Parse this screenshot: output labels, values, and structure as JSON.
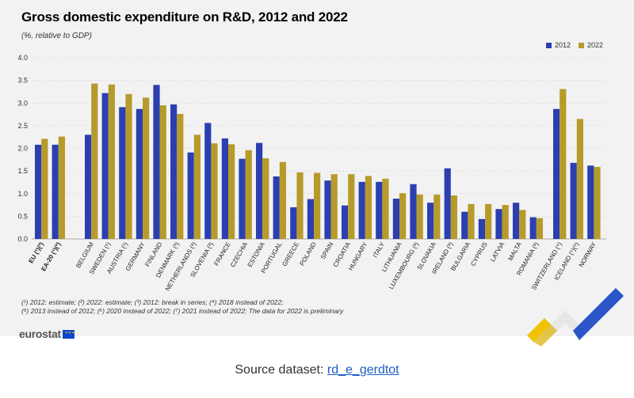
{
  "title": "Gross domestic expenditure on R&D, 2012 and 2022",
  "subtitle": "(%, relative to GDP)",
  "colors": {
    "series_2012": "#2b3fb0",
    "series_2022": "#b79b2a",
    "panel_bg": "#f2f2f2"
  },
  "chart_data": {
    "type": "bar",
    "ylim": [
      0,
      4.0
    ],
    "yticks": [
      "0.0",
      "0.5",
      "1.0",
      "1.5",
      "2.0",
      "2.5",
      "3.0",
      "3.5",
      "4.0"
    ],
    "grid": true,
    "legend_position": "top-right",
    "categories": [
      "EU (¹)(²)",
      "EA-20 (¹)(²)",
      "BELGIUM",
      "SWEDEN (¹)",
      "AUSTRIA (¹)",
      "GERMANY",
      "FINLAND",
      "DENMARK (³)",
      "NETHERLANDS (³)",
      "SLOVENIA (³)",
      "FRANCE",
      "CZECHIA",
      "ESTONIA",
      "PORTUGAL",
      "GREECE",
      "POLAND",
      "SPAIN",
      "CROATIA",
      "HUNGARY",
      "ITALY",
      "LITHUANIA",
      "LUXEMBOURG (³)",
      "SLOVAKIA",
      "IRELAND (³)",
      "BULGARIA",
      "CYPRUS",
      "LATVIA",
      "MALTA",
      "ROMANIA (³)",
      "SWITZERLAND (⁴)",
      "ICELAND (⁵)(⁶)",
      "NORWAY"
    ],
    "groups": [
      2,
      27,
      3
    ],
    "series": [
      {
        "name": "2012",
        "values": [
          2.08,
          2.08,
          2.3,
          3.22,
          2.91,
          2.87,
          3.4,
          2.97,
          1.91,
          2.56,
          2.22,
          1.77,
          2.12,
          1.38,
          0.7,
          0.88,
          1.29,
          0.74,
          1.26,
          1.26,
          0.89,
          1.21,
          0.8,
          1.56,
          0.6,
          0.44,
          0.66,
          0.8,
          0.48,
          2.87,
          1.68,
          1.62
        ]
      },
      {
        "name": "2022",
        "values": [
          2.21,
          2.26,
          3.43,
          3.41,
          3.2,
          3.12,
          2.95,
          2.76,
          2.3,
          2.11,
          2.09,
          1.96,
          1.78,
          1.7,
          1.47,
          1.46,
          1.43,
          1.43,
          1.39,
          1.33,
          1.01,
          0.98,
          0.98,
          0.96,
          0.77,
          0.77,
          0.75,
          0.64,
          0.46,
          3.31,
          2.65,
          1.59
        ]
      }
    ]
  },
  "footnotes": [
    "(¹) 2012: estimate; (²) 2022: estimate; (³) 2012: break in series; (⁴) 2018 instead of 2022;",
    "(⁵) 2013 instead of 2012; (⁶) 2020 instead of 2022; (⁷) 2021 instead of 2022; The data for 2022 is preliminary"
  ],
  "logo_text": "eurostat",
  "source": {
    "prefix": "Source dataset: ",
    "link": "rd_e_gerdtot"
  }
}
